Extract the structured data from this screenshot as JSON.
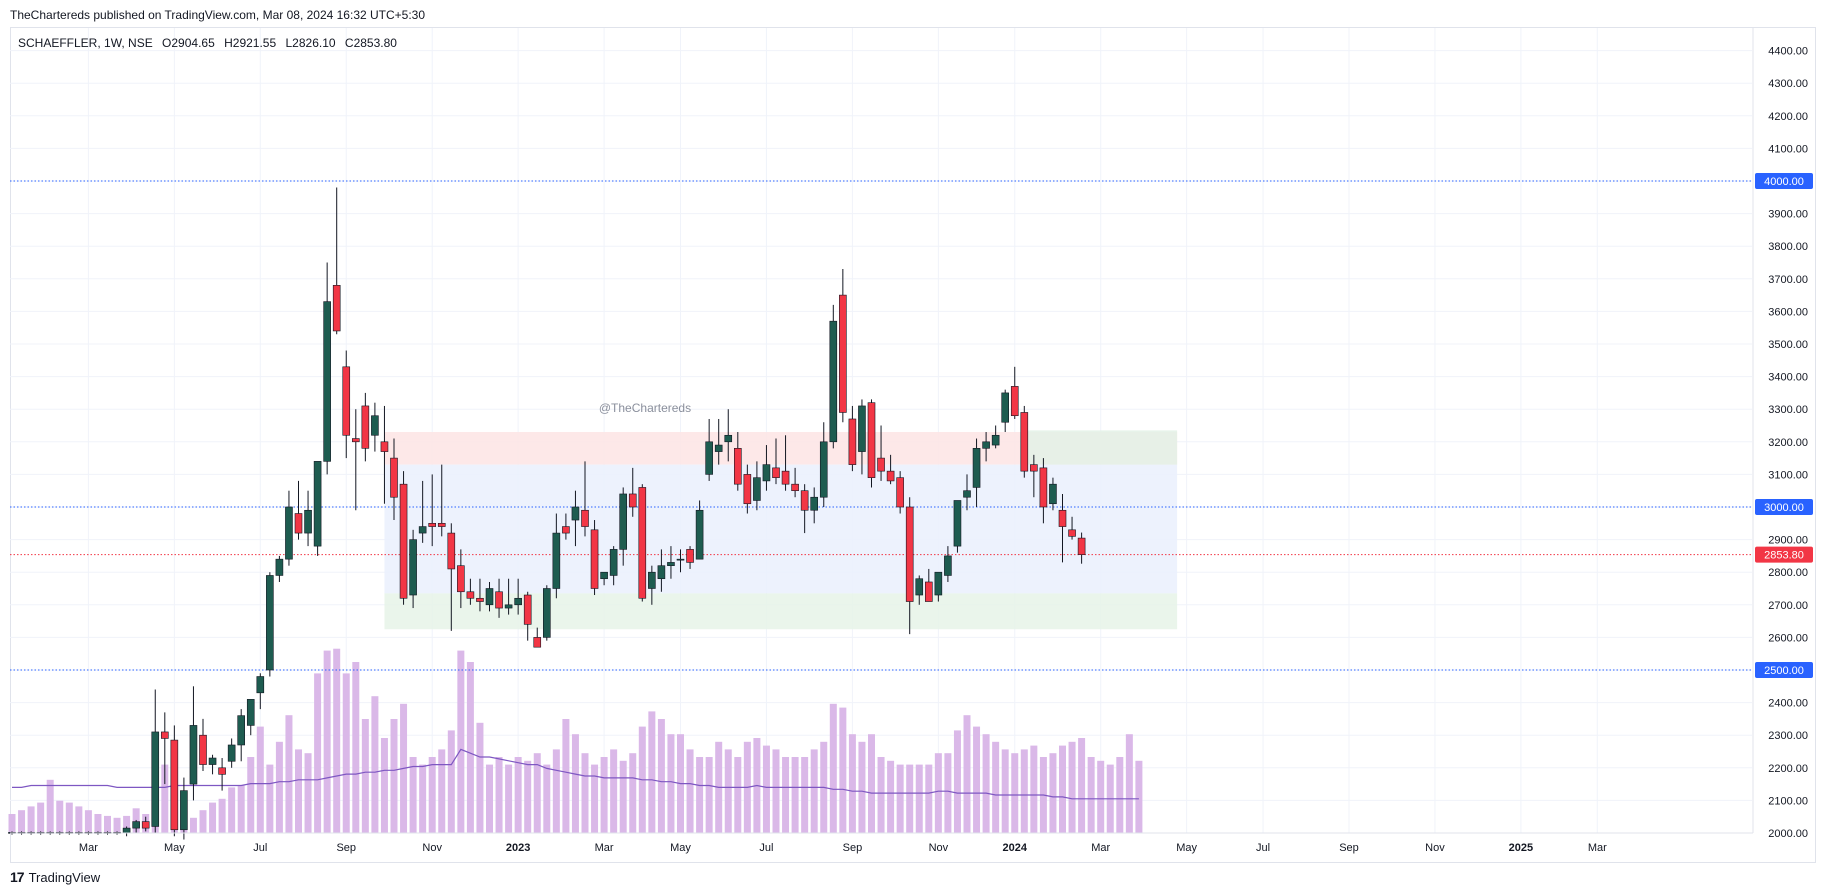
{
  "header": {
    "published_text": "TheChartereds published on TradingView.com, Mar 08, 2024 16:32 UTC+5:30"
  },
  "legend": {
    "symbol": "SCHAEFFLER, 1W, NSE",
    "open": "O2904.65",
    "high": "H2921.55",
    "low": "L2826.10",
    "close": "C2853.80"
  },
  "watermark": "@TheChartereds",
  "footer": {
    "logo": "17",
    "brand": "TradingView"
  },
  "colors": {
    "up": "#1e5c50",
    "down": "#f23645",
    "volume": "#dab8e8",
    "volume_ma": "#7e57c2",
    "level_line": "#2962ff",
    "price_line": "#f23645"
  },
  "chart_data": {
    "type": "candlestick",
    "symbol": "SCHAEFFLER",
    "interval": "1W",
    "exchange": "NSE",
    "ylim": [
      2000,
      4450
    ],
    "price_axis_ticks": [
      "2000.00",
      "2100.00",
      "2200.00",
      "2300.00",
      "2400.00",
      "2500.00",
      "2600.00",
      "2700.00",
      "2800.00",
      "2900.00",
      "3000.00",
      "3100.00",
      "3200.00",
      "3300.00",
      "3400.00",
      "3500.00",
      "3600.00",
      "3700.00",
      "3800.00",
      "3900.00",
      "4000.00",
      "4100.00",
      "4200.00",
      "4300.00",
      "4400.00"
    ],
    "time_axis_labels": [
      {
        "label": "Mar",
        "week": 8,
        "bold": false
      },
      {
        "label": "May",
        "week": 17,
        "bold": false
      },
      {
        "label": "Jul",
        "week": 26,
        "bold": false
      },
      {
        "label": "Sep",
        "week": 35,
        "bold": false
      },
      {
        "label": "Nov",
        "week": 44,
        "bold": false
      },
      {
        "label": "2023",
        "week": 53,
        "bold": true
      },
      {
        "label": "Mar",
        "week": 62,
        "bold": false
      },
      {
        "label": "May",
        "week": 70,
        "bold": false
      },
      {
        "label": "Jul",
        "week": 79,
        "bold": false
      },
      {
        "label": "Sep",
        "week": 88,
        "bold": false
      },
      {
        "label": "Nov",
        "week": 97,
        "bold": false
      },
      {
        "label": "2024",
        "week": 105,
        "bold": true
      },
      {
        "label": "Mar",
        "week": 114,
        "bold": false
      },
      {
        "label": "May",
        "week": 123,
        "bold": false
      },
      {
        "label": "Jul",
        "week": 131,
        "bold": false
      },
      {
        "label": "Sep",
        "week": 140,
        "bold": false
      },
      {
        "label": "Nov",
        "week": 149,
        "bold": false
      },
      {
        "label": "2025",
        "week": 158,
        "bold": true
      },
      {
        "label": "Mar",
        "week": 166,
        "bold": false
      }
    ],
    "horizontal_levels": [
      {
        "price": 4000,
        "label": "4000.00",
        "type": "level"
      },
      {
        "price": 3000,
        "label": "3000.00",
        "type": "level"
      },
      {
        "price": 2500,
        "label": "2500.00",
        "type": "level"
      },
      {
        "price": 2853.8,
        "label": "2853.80",
        "type": "last-price"
      }
    ],
    "zones": [
      {
        "name": "resistance",
        "from_week": 39,
        "to_week": 122,
        "low": 3130,
        "high": 3230,
        "color": "#fde4e4"
      },
      {
        "name": "range",
        "from_week": 39,
        "to_week": 122,
        "low": 2735,
        "high": 3130,
        "color": "#eaf0fd"
      },
      {
        "name": "support",
        "from_week": 39,
        "to_week": 122,
        "low": 2625,
        "high": 2735,
        "color": "#e6f3e8"
      },
      {
        "name": "breakout",
        "from_week": 106,
        "to_week": 122,
        "low": 3130,
        "high": 3235,
        "color": "#e3f1e6"
      }
    ],
    "candles": [
      {
        "o": 2000,
        "h": 2005,
        "l": 1995,
        "c": 2002
      },
      {
        "o": 2000,
        "h": 2005,
        "l": 1995,
        "c": 2002
      },
      {
        "o": 2000,
        "h": 2005,
        "l": 1995,
        "c": 2002
      },
      {
        "o": 2000,
        "h": 2005,
        "l": 1995,
        "c": 2002
      },
      {
        "o": 2000,
        "h": 2005,
        "l": 1995,
        "c": 2002
      },
      {
        "o": 2000,
        "h": 2005,
        "l": 1995,
        "c": 2002
      },
      {
        "o": 2000,
        "h": 2005,
        "l": 1995,
        "c": 2002
      },
      {
        "o": 2000,
        "h": 2005,
        "l": 1995,
        "c": 2002
      },
      {
        "o": 2000,
        "h": 2005,
        "l": 1995,
        "c": 2002
      },
      {
        "o": 2000,
        "h": 2005,
        "l": 1995,
        "c": 2002
      },
      {
        "o": 2000,
        "h": 2005,
        "l": 1995,
        "c": 2002
      },
      {
        "o": 2000,
        "h": 2005,
        "l": 1995,
        "c": 2002
      },
      {
        "o": 2000,
        "h": 2020,
        "l": 1990,
        "c": 2015
      },
      {
        "o": 2015,
        "h": 2040,
        "l": 2000,
        "c": 2035
      },
      {
        "o": 2035,
        "h": 2050,
        "l": 2005,
        "c": 2015
      },
      {
        "o": 2020,
        "h": 2440,
        "l": 2000,
        "c": 2310
      },
      {
        "o": 2310,
        "h": 2370,
        "l": 2150,
        "c": 2290
      },
      {
        "o": 2285,
        "h": 2330,
        "l": 1990,
        "c": 2010
      },
      {
        "o": 2010,
        "h": 2170,
        "l": 1980,
        "c": 2130
      },
      {
        "o": 2150,
        "h": 2450,
        "l": 2100,
        "c": 2330
      },
      {
        "o": 2300,
        "h": 2350,
        "l": 2190,
        "c": 2210
      },
      {
        "o": 2210,
        "h": 2240,
        "l": 2180,
        "c": 2230
      },
      {
        "o": 2200,
        "h": 2230,
        "l": 2130,
        "c": 2180
      },
      {
        "o": 2220,
        "h": 2290,
        "l": 2200,
        "c": 2270
      },
      {
        "o": 2270,
        "h": 2380,
        "l": 2220,
        "c": 2360
      },
      {
        "o": 2330,
        "h": 2400,
        "l": 2300,
        "c": 2410
      },
      {
        "o": 2430,
        "h": 2490,
        "l": 2380,
        "c": 2480
      },
      {
        "o": 2500,
        "h": 2800,
        "l": 2480,
        "c": 2790
      },
      {
        "o": 2790,
        "h": 2850,
        "l": 2770,
        "c": 2840
      },
      {
        "o": 2840,
        "h": 3050,
        "l": 2820,
        "c": 3000
      },
      {
        "o": 2980,
        "h": 3080,
        "l": 2900,
        "c": 2920
      },
      {
        "o": 2920,
        "h": 3050,
        "l": 2880,
        "c": 2990
      },
      {
        "o": 2880,
        "h": 3130,
        "l": 2850,
        "c": 3140
      },
      {
        "o": 3140,
        "h": 3750,
        "l": 3100,
        "c": 3630
      },
      {
        "o": 3680,
        "h": 3980,
        "l": 3530,
        "c": 3540
      },
      {
        "o": 3430,
        "h": 3480,
        "l": 3150,
        "c": 3220
      },
      {
        "o": 3210,
        "h": 3300,
        "l": 2990,
        "c": 3200
      },
      {
        "o": 3310,
        "h": 3350,
        "l": 3140,
        "c": 3180
      },
      {
        "o": 3220,
        "h": 3320,
        "l": 3170,
        "c": 3280
      },
      {
        "o": 3200,
        "h": 3310,
        "l": 3010,
        "c": 3170
      },
      {
        "o": 3150,
        "h": 3210,
        "l": 2960,
        "c": 3030
      },
      {
        "o": 3070,
        "h": 3110,
        "l": 2700,
        "c": 2720
      },
      {
        "o": 2730,
        "h": 2930,
        "l": 2690,
        "c": 2900
      },
      {
        "o": 2920,
        "h": 3080,
        "l": 2890,
        "c": 2940
      },
      {
        "o": 2950,
        "h": 3100,
        "l": 2880,
        "c": 2940
      },
      {
        "o": 2950,
        "h": 3130,
        "l": 2910,
        "c": 2940
      },
      {
        "o": 2920,
        "h": 2950,
        "l": 2620,
        "c": 2810
      },
      {
        "o": 2820,
        "h": 2870,
        "l": 2690,
        "c": 2740
      },
      {
        "o": 2740,
        "h": 2780,
        "l": 2700,
        "c": 2720
      },
      {
        "o": 2720,
        "h": 2780,
        "l": 2680,
        "c": 2710
      },
      {
        "o": 2700,
        "h": 2770,
        "l": 2680,
        "c": 2750
      },
      {
        "o": 2740,
        "h": 2780,
        "l": 2660,
        "c": 2690
      },
      {
        "o": 2690,
        "h": 2780,
        "l": 2670,
        "c": 2700
      },
      {
        "o": 2700,
        "h": 2780,
        "l": 2670,
        "c": 2720
      },
      {
        "o": 2730,
        "h": 2740,
        "l": 2590,
        "c": 2640
      },
      {
        "o": 2600,
        "h": 2630,
        "l": 2570,
        "c": 2570
      },
      {
        "o": 2600,
        "h": 2760,
        "l": 2590,
        "c": 2750
      },
      {
        "o": 2750,
        "h": 2980,
        "l": 2720,
        "c": 2920
      },
      {
        "o": 2940,
        "h": 2980,
        "l": 2900,
        "c": 2920
      },
      {
        "o": 2960,
        "h": 3050,
        "l": 2880,
        "c": 3000
      },
      {
        "o": 2990,
        "h": 3140,
        "l": 2910,
        "c": 2940
      },
      {
        "o": 2930,
        "h": 2960,
        "l": 2730,
        "c": 2750
      },
      {
        "o": 2780,
        "h": 2800,
        "l": 2760,
        "c": 2800
      },
      {
        "o": 2790,
        "h": 2880,
        "l": 2760,
        "c": 2870
      },
      {
        "o": 2870,
        "h": 3060,
        "l": 2820,
        "c": 3040
      },
      {
        "o": 3040,
        "h": 3120,
        "l": 2970,
        "c": 3000
      },
      {
        "o": 3060,
        "h": 3070,
        "l": 2710,
        "c": 2720
      },
      {
        "o": 2750,
        "h": 2820,
        "l": 2700,
        "c": 2800
      },
      {
        "o": 2780,
        "h": 2870,
        "l": 2740,
        "c": 2820
      },
      {
        "o": 2820,
        "h": 2880,
        "l": 2780,
        "c": 2830
      },
      {
        "o": 2840,
        "h": 2870,
        "l": 2800,
        "c": 2840
      },
      {
        "o": 2870,
        "h": 2880,
        "l": 2810,
        "c": 2830
      },
      {
        "o": 2840,
        "h": 3020,
        "l": 2840,
        "c": 2990
      },
      {
        "o": 3100,
        "h": 3270,
        "l": 3080,
        "c": 3200
      },
      {
        "o": 3170,
        "h": 3270,
        "l": 3130,
        "c": 3190
      },
      {
        "o": 3200,
        "h": 3300,
        "l": 3140,
        "c": 3220
      },
      {
        "o": 3180,
        "h": 3230,
        "l": 3050,
        "c": 3070
      },
      {
        "o": 3100,
        "h": 3130,
        "l": 2980,
        "c": 3010
      },
      {
        "o": 3020,
        "h": 3140,
        "l": 2990,
        "c": 3090
      },
      {
        "o": 3080,
        "h": 3190,
        "l": 3050,
        "c": 3130
      },
      {
        "o": 3120,
        "h": 3210,
        "l": 3070,
        "c": 3090
      },
      {
        "o": 3110,
        "h": 3220,
        "l": 3050,
        "c": 3070
      },
      {
        "o": 3070,
        "h": 3120,
        "l": 3030,
        "c": 3050
      },
      {
        "o": 3050,
        "h": 3070,
        "l": 2920,
        "c": 2990
      },
      {
        "o": 2990,
        "h": 3060,
        "l": 2950,
        "c": 3030
      },
      {
        "o": 3030,
        "h": 3260,
        "l": 3000,
        "c": 3200
      },
      {
        "o": 3200,
        "h": 3620,
        "l": 3180,
        "c": 3570
      },
      {
        "o": 3650,
        "h": 3730,
        "l": 3260,
        "c": 3290
      },
      {
        "o": 3270,
        "h": 3310,
        "l": 3110,
        "c": 3130
      },
      {
        "o": 3170,
        "h": 3330,
        "l": 3100,
        "c": 3310
      },
      {
        "o": 3320,
        "h": 3330,
        "l": 3060,
        "c": 3090
      },
      {
        "o": 3150,
        "h": 3250,
        "l": 3080,
        "c": 3110
      },
      {
        "o": 3110,
        "h": 3160,
        "l": 3070,
        "c": 3080
      },
      {
        "o": 3090,
        "h": 3110,
        "l": 2980,
        "c": 3000
      },
      {
        "o": 3000,
        "h": 3030,
        "l": 2610,
        "c": 2710
      },
      {
        "o": 2730,
        "h": 2790,
        "l": 2700,
        "c": 2780
      },
      {
        "o": 2770,
        "h": 2810,
        "l": 2710,
        "c": 2710
      },
      {
        "o": 2730,
        "h": 2800,
        "l": 2710,
        "c": 2800
      },
      {
        "o": 2790,
        "h": 2880,
        "l": 2770,
        "c": 2850
      },
      {
        "o": 2880,
        "h": 3000,
        "l": 2860,
        "c": 3020
      },
      {
        "o": 3030,
        "h": 3100,
        "l": 2990,
        "c": 3050
      },
      {
        "o": 3060,
        "h": 3210,
        "l": 3000,
        "c": 3180
      },
      {
        "o": 3180,
        "h": 3230,
        "l": 3140,
        "c": 3200
      },
      {
        "o": 3190,
        "h": 3250,
        "l": 3180,
        "c": 3220
      },
      {
        "o": 3260,
        "h": 3360,
        "l": 3230,
        "c": 3350
      },
      {
        "o": 3370,
        "h": 3430,
        "l": 3270,
        "c": 3280
      },
      {
        "o": 3290,
        "h": 3310,
        "l": 3090,
        "c": 3110
      },
      {
        "o": 3130,
        "h": 3160,
        "l": 3030,
        "c": 3110
      },
      {
        "o": 3120,
        "h": 3150,
        "l": 2950,
        "c": 3000
      },
      {
        "o": 3010,
        "h": 3090,
        "l": 2990,
        "c": 3070
      },
      {
        "o": 2990,
        "h": 3040,
        "l": 2830,
        "c": 2940
      },
      {
        "o": 2930,
        "h": 2970,
        "l": 2900,
        "c": 2910
      },
      {
        "o": 2904.65,
        "h": 2921.55,
        "l": 2826.1,
        "c": 2853.8
      }
    ],
    "volume_max": 100,
    "volumes": [
      10,
      12,
      14,
      16,
      28,
      17,
      16,
      14,
      12,
      10,
      9,
      8,
      9,
      13,
      10,
      8,
      36,
      34,
      12,
      8,
      12,
      16,
      18,
      24,
      25,
      40,
      56,
      36,
      48,
      62,
      44,
      42,
      84,
      96,
      97,
      84,
      90,
      60,
      72,
      50,
      60,
      68,
      40,
      36,
      40,
      44,
      54,
      96,
      90,
      58,
      36,
      40,
      36,
      40,
      38,
      42,
      36,
      44,
      60,
      52,
      42,
      36,
      40,
      44,
      38,
      42,
      56,
      64,
      60,
      52,
      52,
      44,
      40,
      40,
      48,
      44,
      40,
      48,
      50,
      46,
      44,
      40,
      40,
      40,
      44,
      48,
      68,
      66,
      52,
      48,
      52,
      40,
      38,
      36,
      36,
      36,
      36,
      42,
      42,
      54,
      62,
      56,
      52,
      48,
      44,
      42,
      44,
      46,
      40,
      42,
      46,
      48,
      50,
      40,
      38,
      36,
      40,
      52,
      38
    ],
    "volume_ma": [
      24,
      24,
      25,
      25,
      25,
      25,
      25,
      25,
      25,
      25,
      25,
      24,
      24,
      24,
      24,
      24,
      24,
      25,
      25,
      25,
      25,
      25,
      25,
      25,
      25,
      26,
      26,
      26,
      27,
      27,
      28,
      28,
      28,
      29,
      30,
      31,
      31,
      32,
      32,
      33,
      33,
      34,
      35,
      35,
      36,
      36,
      36,
      44,
      42,
      40,
      40,
      39,
      38,
      37,
      36,
      36,
      34,
      33,
      32,
      31,
      30,
      30,
      29,
      29,
      29,
      29,
      28,
      28,
      27,
      27,
      26,
      26,
      25,
      25,
      24,
      24,
      24,
      24,
      25,
      24,
      24,
      24,
      24,
      24,
      24,
      24,
      23,
      23,
      22,
      22,
      21,
      21,
      21,
      21,
      21,
      21,
      21,
      22,
      22,
      21,
      21,
      21,
      21,
      20,
      20,
      20,
      20,
      20,
      20,
      19,
      19,
      18,
      18,
      18,
      18,
      18,
      18,
      18,
      18
    ]
  }
}
